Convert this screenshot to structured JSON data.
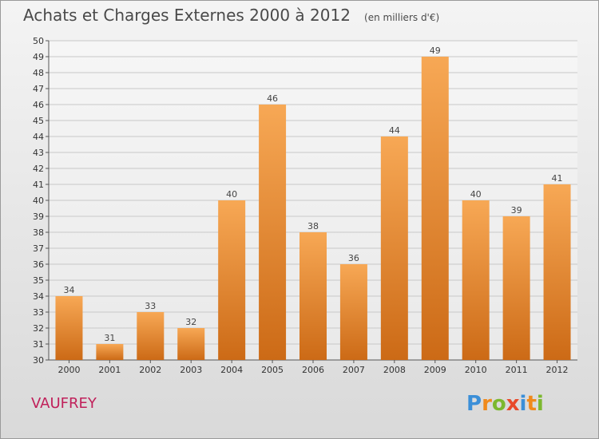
{
  "chart_data": {
    "type": "bar",
    "title": "Achats et Charges Externes 2000 à 2012",
    "subtitle": "(en milliers d'€)",
    "categories": [
      "2000",
      "2001",
      "2002",
      "2003",
      "2004",
      "2005",
      "2006",
      "2007",
      "2008",
      "2009",
      "2010",
      "2011",
      "2012"
    ],
    "values": [
      34,
      31,
      33,
      32,
      40,
      46,
      38,
      36,
      44,
      49,
      40,
      39,
      41
    ],
    "ylim": [
      30,
      50
    ],
    "yticks": [
      30,
      31,
      32,
      33,
      34,
      35,
      36,
      37,
      38,
      39,
      40,
      41,
      42,
      43,
      44,
      45,
      46,
      47,
      48,
      49,
      50
    ],
    "grid": true,
    "bar_color_top": "#f7a855",
    "bar_color_bottom": "#cc6a16"
  },
  "location": "VAUFREY",
  "logo": {
    "text": "Proxiti",
    "letters": [
      {
        "ch": "P",
        "color": "#3b8fd8"
      },
      {
        "ch": "r",
        "color": "#f08a1c"
      },
      {
        "ch": "o",
        "color": "#7cb82f"
      },
      {
        "ch": "x",
        "color": "#e84a2a"
      },
      {
        "ch": "i",
        "color": "#3b8fd8"
      },
      {
        "ch": "t",
        "color": "#f08a1c"
      },
      {
        "ch": "i",
        "color": "#7cb82f"
      }
    ]
  }
}
